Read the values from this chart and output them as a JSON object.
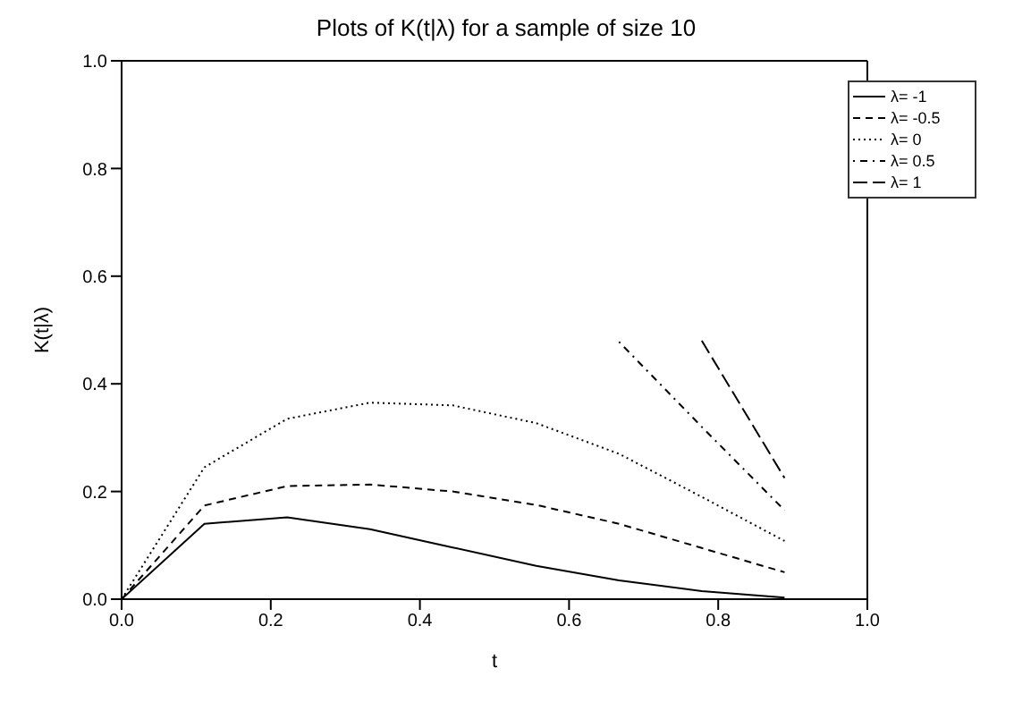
{
  "chart_data": {
    "type": "line",
    "title": "Plots of K(t|λ) for a sample of size 10",
    "xlabel": "t",
    "ylabel": "K(t|λ)",
    "xlim": [
      0,
      1
    ],
    "xticks": [
      {
        "value": 0,
        "label": "0.0"
      },
      {
        "value": 0.2,
        "label": "0.2"
      },
      {
        "value": 0.4,
        "label": "0.4"
      },
      {
        "value": 0.6,
        "label": "0.6"
      },
      {
        "value": 0.8,
        "label": "0.8"
      },
      {
        "value": 1,
        "label": "1.0"
      }
    ],
    "ylim": [
      0,
      1
    ],
    "yticks": [
      {
        "value": 0,
        "label": "0.0"
      },
      {
        "value": 0.2,
        "label": "0.2"
      },
      {
        "value": 0.4,
        "label": "0.4"
      },
      {
        "value": 0.6,
        "label": "0.6"
      },
      {
        "value": 0.8,
        "label": "0.8"
      },
      {
        "value": 1,
        "label": "1.0"
      }
    ],
    "legend": "top right",
    "marker": "none",
    "series": [
      {
        "name": "λ= -1",
        "color": "#000000",
        "line_style": "solid",
        "x": [
          0,
          0.111,
          0.222,
          0.333,
          0.444,
          0.556,
          0.667,
          0.778,
          0.889
        ],
        "values": [
          0,
          0.14,
          0.152,
          0.13,
          0.096,
          0.062,
          0.035,
          0.015,
          0.003
        ]
      },
      {
        "name": "λ= -0.5",
        "color": "#000000",
        "line_style": "dashed",
        "x": [
          0,
          0.111,
          0.222,
          0.333,
          0.444,
          0.556,
          0.667,
          0.778,
          0.889
        ],
        "values": [
          0,
          0.174,
          0.21,
          0.213,
          0.2,
          0.175,
          0.14,
          0.095,
          0.05
        ]
      },
      {
        "name": "λ= 0",
        "color": "#000000",
        "line_style": "dotted",
        "x": [
          0,
          0.111,
          0.222,
          0.333,
          0.444,
          0.556,
          0.667,
          0.778,
          0.889
        ],
        "values": [
          0,
          0.245,
          0.335,
          0.365,
          0.36,
          0.327,
          0.27,
          0.19,
          0.108
        ]
      },
      {
        "name": "λ= 0.5",
        "color": "#000000",
        "line_style": "dashdot",
        "x": [
          0.667,
          0.778,
          0.889
        ],
        "values": [
          0.478,
          0.32,
          0.165
        ]
      },
      {
        "name": "λ= 1",
        "color": "#000000",
        "line_style": "longdash",
        "x": [
          0.778,
          0.889
        ],
        "values": [
          0.48,
          0.225
        ]
      }
    ]
  }
}
